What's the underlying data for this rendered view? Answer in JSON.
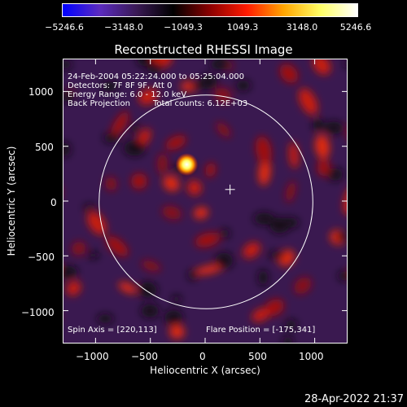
{
  "colorbar": {
    "ticks": [
      "−5246.6",
      "−3148.0",
      "−1049.3",
      "1049.3",
      "3148.0",
      "5246.6"
    ],
    "range": [
      -5246.6,
      5246.6
    ],
    "colors": [
      "#0000ff",
      "#5b2bbf",
      "#3a1a55",
      "#000000",
      "#8b0000",
      "#ff1a00",
      "#ffa500",
      "#ffff66",
      "#ffffff"
    ]
  },
  "chart_data": {
    "type": "heatmap",
    "title": "Reconstructed RHESSI Image",
    "xlabel": "Heliocentric X (arcsec)",
    "ylabel": "Heliocentric Y (arcsec)",
    "xlim": [
      -1300,
      1300
    ],
    "ylim": [
      -1300,
      1300
    ],
    "xticks": [
      -1000,
      -500,
      0,
      500,
      1000
    ],
    "yticks": [
      1000,
      500,
      0,
      -500,
      -1000
    ],
    "xtick_labels": [
      "−1000",
      "−500",
      "0",
      "500",
      "1000"
    ],
    "ytick_labels": [
      "1000",
      "500",
      "0",
      "−500",
      "−1000"
    ],
    "solar_limb_radius": 975,
    "source_peak": {
      "x": -175,
      "y": 341
    },
    "spin_axis_marker": {
      "x": 220,
      "y": 113
    }
  },
  "annotations": {
    "time_range": "24-Feb-2004 05:22:24.000 to 05:25:04.000",
    "detectors": "Detectors: 7F 8F 9F, Att 0",
    "energy_range": "Energy Range: 6.0 - 12.0 keV",
    "method": "Back Projection",
    "total_counts": "Total counts: 6.12E+03",
    "spin_axis": "Spin Axis = [220,113]",
    "flare_position": "Flare Position = [-175,341]"
  },
  "footer": {
    "timestamp": "28-Apr-2022 21:37"
  }
}
